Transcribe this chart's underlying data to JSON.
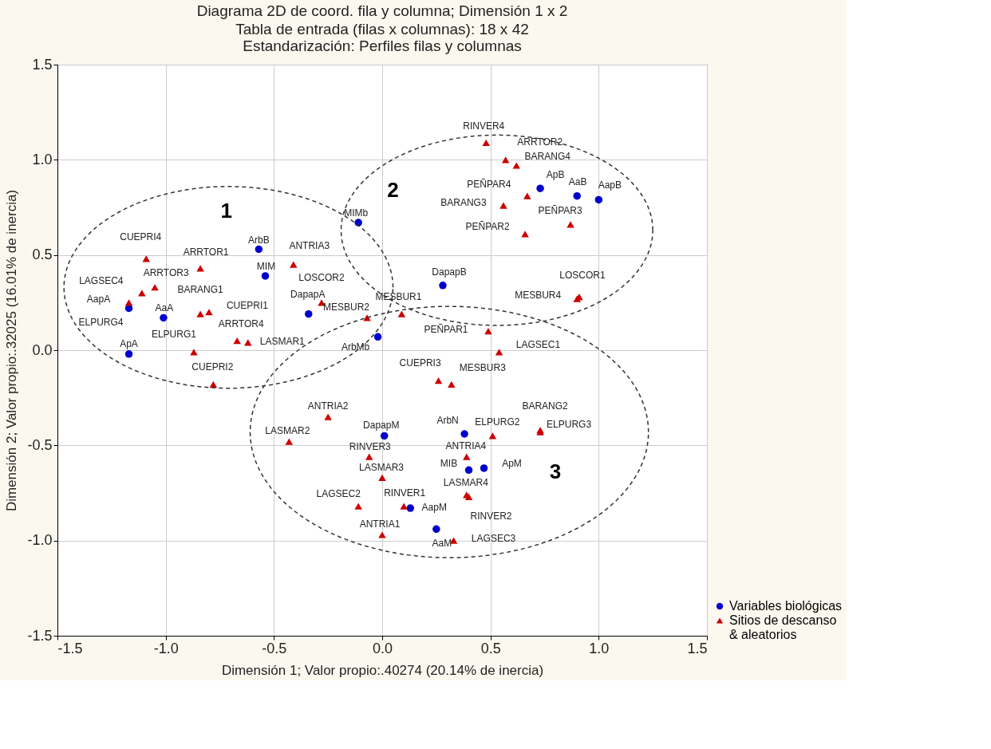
{
  "chart_data": {
    "type": "scatter",
    "title": "Diagrama 2D de coord. fila y columna; Dimensión   1 x  2",
    "subtitle": "Tabla de entrada (filas x columnas): 18 x 42\nEstandarización: Perfiles filas y columnas",
    "xlabel": "Dimensión 1; Valor propio:.40274 (20.14% de inercia)",
    "ylabel": "Dimensión 2; Valor propio:.32025 (16.01% de inercia)",
    "xlim": [
      -1.5,
      1.5
    ],
    "xticks": [
      {
        "value": -1.5,
        "label": "-1.5"
      },
      {
        "value": -1.0,
        "label": "-1.0"
      },
      {
        "value": -0.5,
        "label": "-0.5"
      },
      {
        "value": 0.0,
        "label": "0.0"
      },
      {
        "value": 0.5,
        "label": "0.5"
      },
      {
        "value": 1.0,
        "label": "1.0"
      },
      {
        "value": 1.5,
        "label": "1.5"
      }
    ],
    "ylim": [
      -1.5,
      1.5
    ],
    "yticks": [
      {
        "value": -1.5,
        "label": "-1.5"
      },
      {
        "value": -1.0,
        "label": "-1.0"
      },
      {
        "value": -0.5,
        "label": "-0.5"
      },
      {
        "value": 0.0,
        "label": "0.0"
      },
      {
        "value": 0.5,
        "label": "0.5"
      },
      {
        "value": 1.0,
        "label": "1.0"
      },
      {
        "value": 1.5,
        "label": "1.5"
      }
    ],
    "grid": true,
    "legend": "bottom right",
    "annotations": [
      "1",
      "2",
      "3"
    ],
    "series": [
      {
        "name": "Variables biológicas",
        "color": "#0000cc",
        "marker": "circle",
        "x": [
          -1.17,
          -1.01,
          -1.17,
          -0.57,
          -0.54,
          -0.34,
          -0.11,
          -0.02,
          0.28,
          0.73,
          0.9,
          1.0,
          0.01,
          0.38,
          0.4,
          0.47,
          0.13,
          0.25
        ],
        "values": [
          -0.02,
          0.17,
          0.22,
          0.53,
          0.39,
          0.19,
          0.67,
          0.07,
          0.34,
          0.85,
          0.81,
          0.79,
          -0.45,
          -0.44,
          -0.63,
          -0.62,
          -0.83,
          -0.94
        ],
        "value_labels": [
          "ApA",
          "AaA",
          "AapA",
          "ArbB",
          "MIM",
          "DapapA",
          "MIMb",
          "ArbMb",
          "DapapB",
          "ApB",
          "AaB",
          "AapB",
          "DapapM",
          "ArbN",
          "MIB",
          "ApM",
          "AapM",
          "AaM"
        ]
      },
      {
        "name": "Sitios de descanso\n& aleatorios",
        "color": "#cc0000",
        "marker": "triangle",
        "x": [
          -1.09,
          -0.84,
          -1.05,
          -1.11,
          -1.17,
          -0.84,
          -0.8,
          -0.67,
          -0.62,
          -0.87,
          -0.78,
          -0.41,
          -0.28,
          -0.07,
          0.09,
          0.48,
          0.57,
          0.62,
          0.67,
          0.56,
          0.87,
          0.66,
          0.91,
          0.9,
          0.49,
          0.54,
          0.26,
          0.32,
          -0.25,
          -0.43,
          0.73,
          0.73,
          0.51,
          -0.06,
          0.39,
          0.0,
          0.39,
          0.4,
          -0.11,
          0.1,
          0.0,
          0.33
        ],
        "values": [
          0.48,
          0.43,
          0.33,
          0.3,
          0.25,
          0.19,
          0.2,
          0.05,
          0.04,
          -0.01,
          -0.18,
          0.45,
          0.25,
          0.17,
          0.19,
          1.09,
          1.0,
          0.97,
          0.81,
          0.76,
          0.66,
          0.61,
          0.28,
          0.27,
          0.1,
          -0.01,
          -0.16,
          -0.18,
          -0.35,
          -0.48,
          -0.42,
          -0.43,
          -0.45,
          -0.56,
          -0.56,
          -0.67,
          -0.76,
          -0.77,
          -0.82,
          -0.82,
          -0.97,
          -1.0
        ],
        "value_labels": [
          "CUEPRI4",
          "ARRTOR1",
          "ARRTOR3",
          "LAGSEC4",
          "ELPURG4",
          "BARANG1",
          "CUEPRI1",
          "ARRTOR4",
          "LASMAR1",
          "ELPURG1",
          "CUEPRI2",
          "ANTRIA3",
          "LOSCOR2",
          "MESBUR2",
          "MESBUR1",
          "RINVER4",
          "ARRTOR2",
          "BARANG4",
          "PEÑPAR4",
          "BARANG3",
          "PEÑPAR3",
          "PEÑPAR2",
          "LOSCOR1",
          "MESBUR4",
          "PEÑPAR1",
          "LAGSEC1",
          "CUEPRI3",
          "MESBUR3",
          "ANTRIA2",
          "LASMAR2",
          "BARANG2",
          "ELPURG3",
          "ELPURG2",
          "RINVER3",
          "ANTRIA4",
          "LASMAR3",
          "LASMAR4",
          "RINVER2",
          "LAGSEC2",
          "RINVER1",
          "ANTRIA1",
          "LAGSEC3"
        ]
      }
    ]
  }
}
